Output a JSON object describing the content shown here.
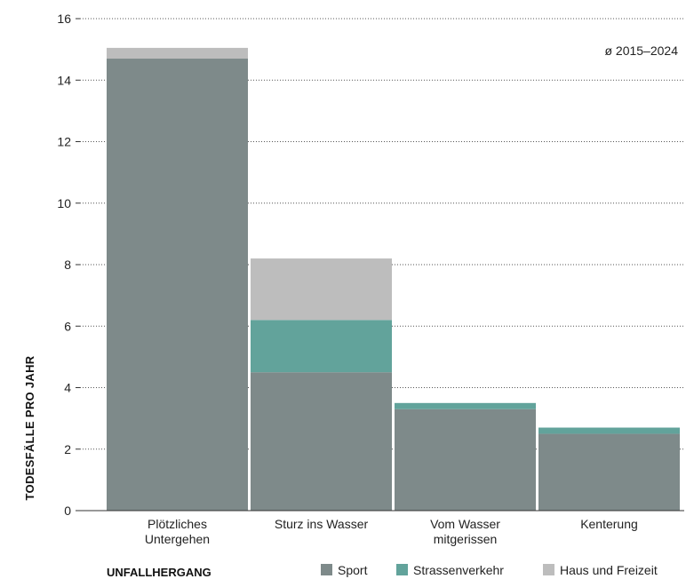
{
  "chart_data": {
    "type": "bar",
    "stacked": true,
    "categories": [
      [
        "Plötzliches",
        "Untergehen"
      ],
      [
        "Sturz ins Wasser"
      ],
      [
        "Vom Wasser",
        "mitgerissen"
      ],
      [
        "Kenterung"
      ]
    ],
    "series": [
      {
        "name": "Sport",
        "color": "#7e8a8a",
        "values": [
          14.7,
          4.5,
          3.3,
          2.5
        ]
      },
      {
        "name": "Strassenverkehr",
        "color": "#62a39b",
        "values": [
          0,
          1.7,
          0.2,
          0.2
        ]
      },
      {
        "name": "Haus und Freizeit",
        "color": "#bdbdbd",
        "values": [
          0.35,
          2.0,
          0,
          0
        ]
      }
    ],
    "ylim": [
      0,
      16
    ],
    "yticks": [
      0,
      2,
      4,
      6,
      8,
      10,
      12,
      14,
      16
    ],
    "ylabel": "TODESFÄLLE PRO JAHR",
    "xlabel": "UNFALLHERGANG",
    "annotation": "ø 2015–2024",
    "grid": "horizontal dotted",
    "legend_position": "bottom-right"
  }
}
